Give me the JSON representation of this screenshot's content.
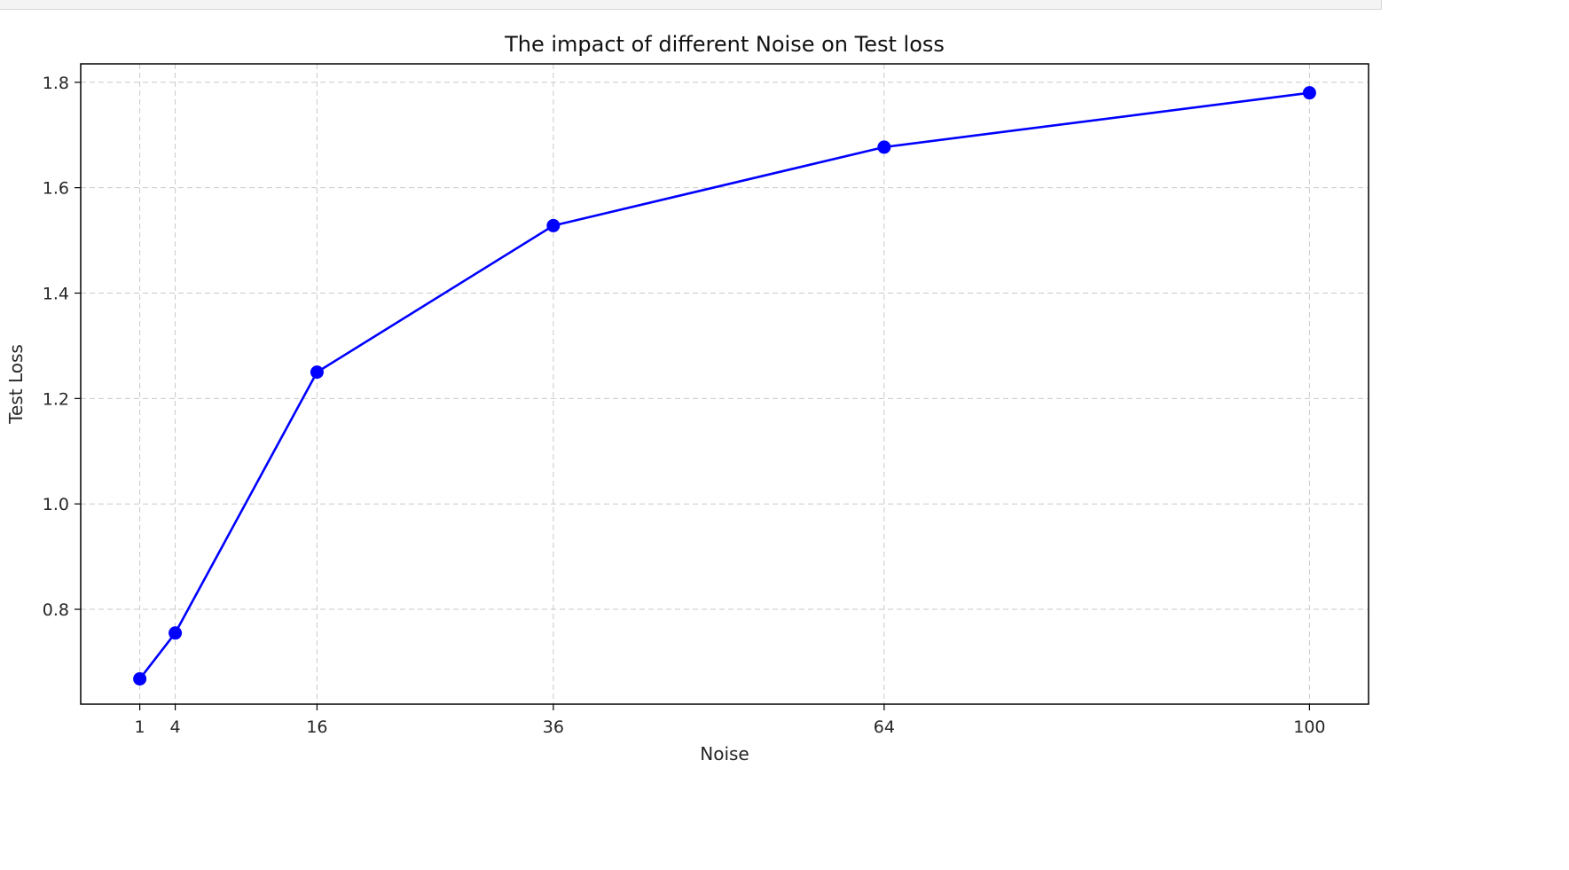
{
  "chart_data": {
    "type": "line",
    "title": "The impact of different Noise on Test loss",
    "xlabel": "Noise",
    "ylabel": "Test Loss",
    "x": [
      1,
      4,
      16,
      36,
      64,
      100
    ],
    "x_tick_labels": [
      "1",
      "4",
      "16",
      "36",
      "64",
      "100"
    ],
    "xlim": [
      -4,
      105
    ],
    "ylim": [
      0.62,
      1.835
    ],
    "y_ticks": [
      0.8,
      1.0,
      1.2,
      1.4,
      1.6,
      1.8
    ],
    "y_tick_labels": [
      "0.8",
      "1.0",
      "1.2",
      "1.4",
      "1.6",
      "1.8"
    ],
    "series": [
      {
        "values": [
          0.668,
          0.755,
          1.25,
          1.528,
          1.677,
          1.78
        ],
        "color": "#0000ff",
        "marker": "circle"
      }
    ],
    "grid": true,
    "grid_style": "dashed",
    "legend": "none"
  }
}
